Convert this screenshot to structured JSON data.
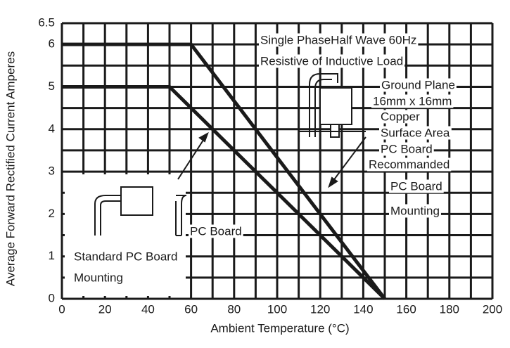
{
  "chart_data": {
    "type": "line",
    "xlabel": "Ambient Temperature (°C)",
    "ylabel": "Average Forward Rectified Current Amperes",
    "xlim": [
      0,
      200
    ],
    "ylim": [
      0,
      6.5
    ],
    "xticks": [
      0,
      20,
      40,
      60,
      80,
      100,
      120,
      140,
      160,
      180,
      200
    ],
    "yticks": [
      0,
      1,
      2,
      3,
      4,
      5,
      6,
      6.5
    ],
    "grid": true,
    "series": [
      {
        "color": "#1a1a1a",
        "x": [
          0,
          60,
          150
        ],
        "values": [
          6,
          6,
          0
        ]
      },
      {
        "color": "#1a1a1a",
        "x": [
          0,
          50,
          150
        ],
        "values": [
          5,
          5,
          0
        ]
      }
    ],
    "annotations": [
      "Single PhaseHalf Wave 60Hz",
      "Resistive of Inductive Load",
      "Ground Plane",
      "16mm x 16mm",
      "Copper",
      "Surface Area",
      "PC Board",
      "Recommanded",
      "PC Board",
      "Mounting",
      "PC Board",
      "Standard PC Board",
      "Mounting"
    ]
  }
}
